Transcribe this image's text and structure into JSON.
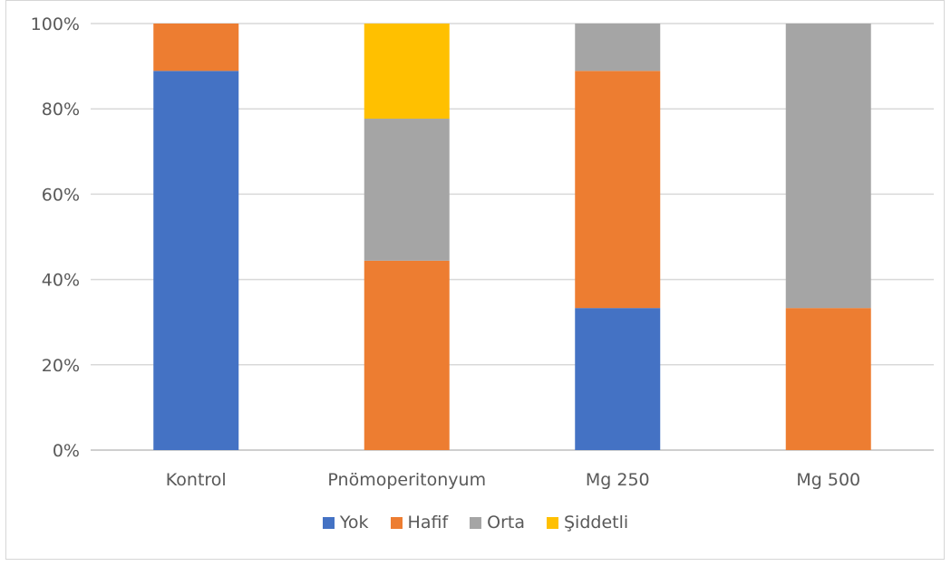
{
  "chart_data": {
    "type": "bar",
    "stacked": true,
    "percent": true,
    "categories": [
      "Kontrol",
      "Pnömoperitonyum",
      "Mg 250",
      "Mg 500"
    ],
    "series": [
      {
        "name": "Yok",
        "color": "#4472C4",
        "values": [
          88.9,
          0,
          33.3,
          0
        ]
      },
      {
        "name": "Hafif",
        "color": "#ED7D31",
        "values": [
          11.1,
          44.4,
          55.6,
          33.3
        ]
      },
      {
        "name": "Orta",
        "color": "#A5A5A5",
        "values": [
          0,
          33.3,
          11.1,
          66.7
        ]
      },
      {
        "name": "Şiddetli",
        "color": "#FFC000",
        "values": [
          0,
          22.3,
          0,
          0
        ]
      }
    ],
    "yticks": [
      "0%",
      "20%",
      "40%",
      "60%",
      "80%",
      "100%"
    ],
    "ylim": [
      0,
      100
    ],
    "grid": true,
    "legend_position": "bottom",
    "title": "",
    "xlabel": "",
    "ylabel": ""
  }
}
